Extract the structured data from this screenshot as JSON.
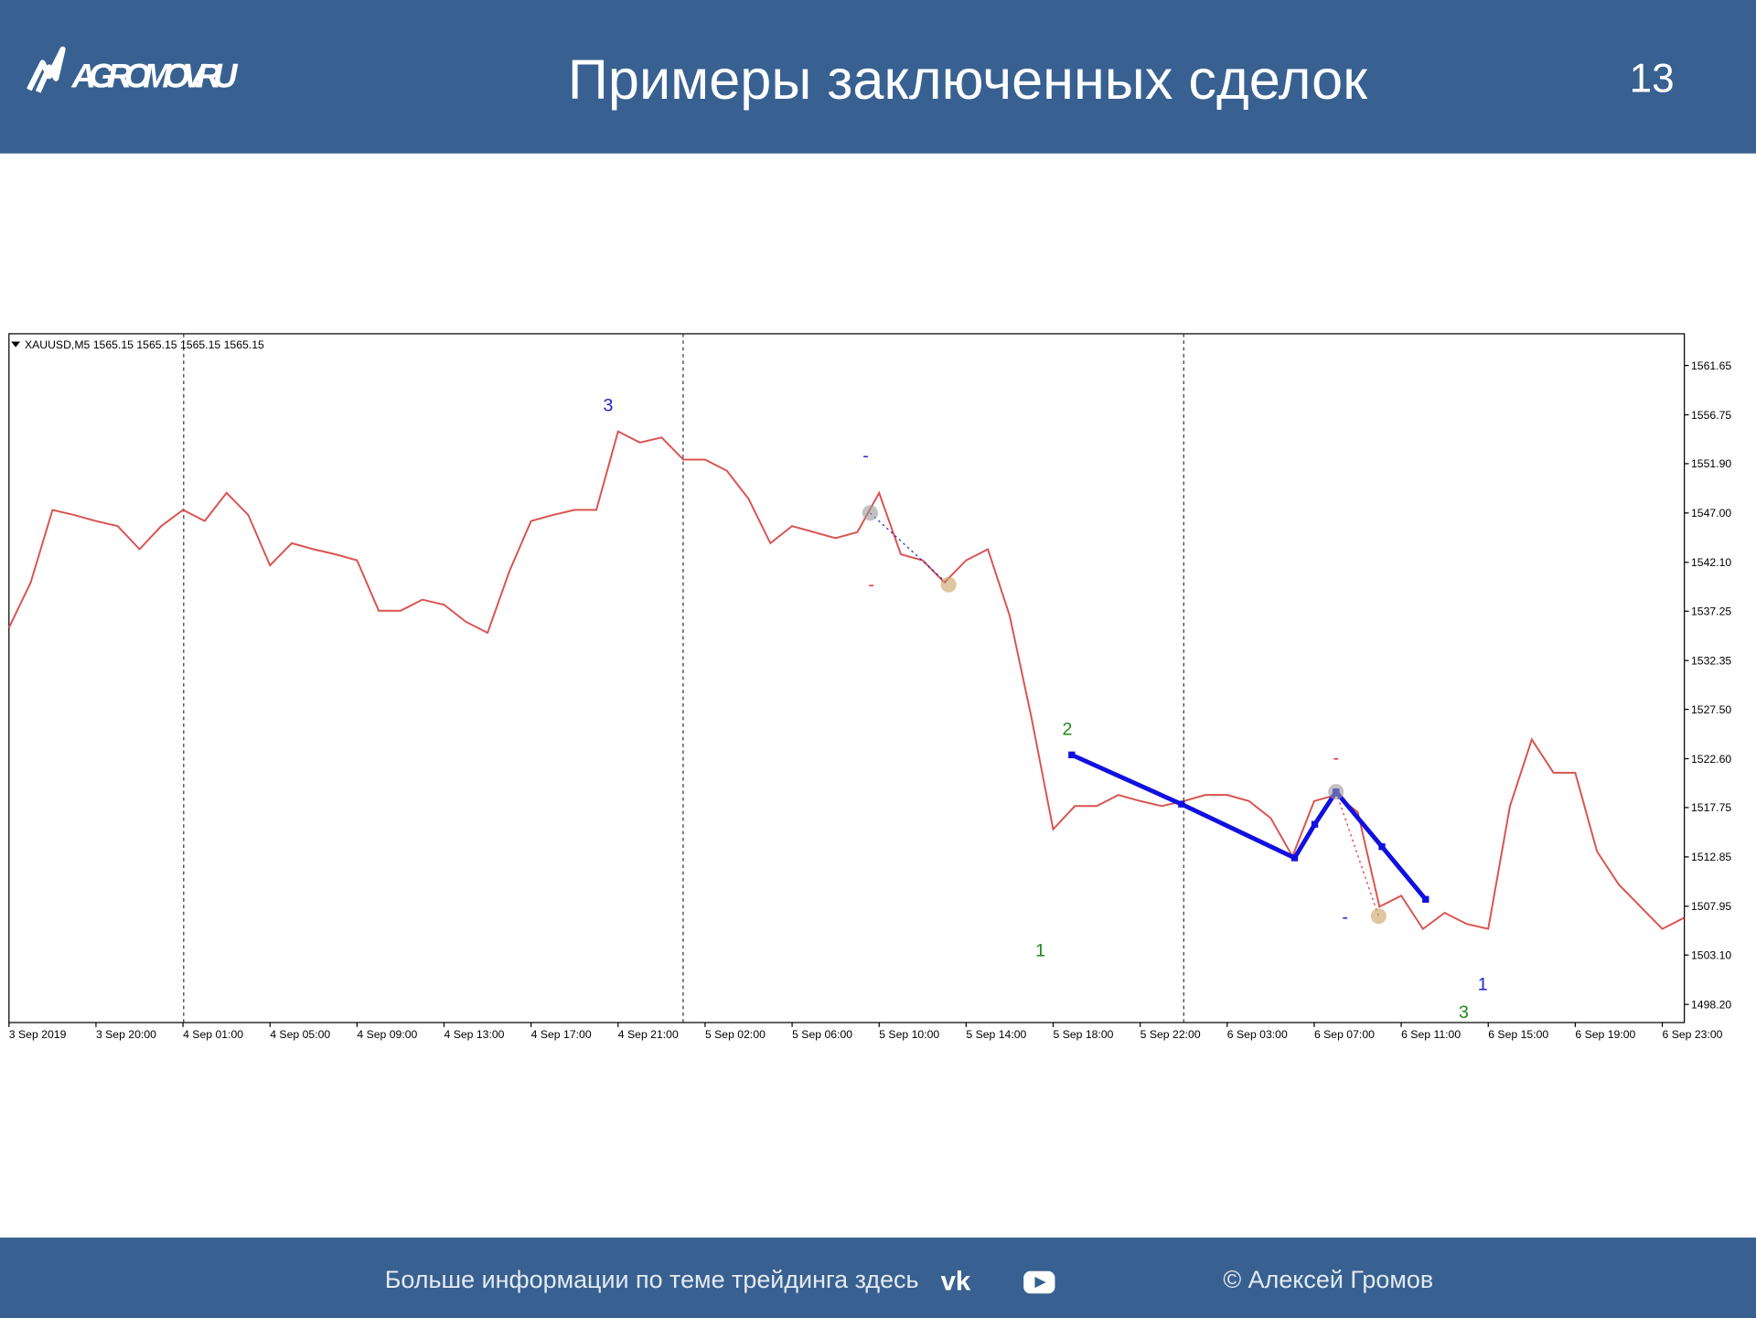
{
  "header": {
    "logo": "AGROMOV.RU",
    "title": "Примеры заключенных сделок",
    "page_number": 13
  },
  "chart_data": {
    "type": "line",
    "subtitle": "XAUUSD,M5  1565.15 1565.15 1565.15 1565.15",
    "color": "#d9534f",
    "categories": [
      "3 Sep 2019",
      null,
      null,
      null,
      "3 Sep 20:00",
      null,
      null,
      null,
      "4 Sep 01:00",
      null,
      null,
      null,
      "4 Sep 05:00",
      null,
      null,
      null,
      "4 Sep 09:00",
      null,
      null,
      null,
      "4 Sep 13:00",
      null,
      null,
      null,
      "4 Sep 17:00",
      null,
      null,
      null,
      "4 Sep 21:00",
      null,
      null,
      null,
      "5 Sep 02:00",
      null,
      null,
      null,
      "5 Sep 06:00",
      null,
      null,
      null,
      "5 Sep 10:00",
      null,
      null,
      null,
      "5 Sep 14:00",
      null,
      null,
      null,
      "5 Sep 18:00",
      null,
      null,
      null,
      "5 Sep 22:00",
      null,
      null,
      null,
      "6 Sep 03:00",
      null,
      null,
      null,
      "6 Sep 07:00",
      null,
      null,
      null,
      "6 Sep 11:00",
      null,
      null,
      null,
      "6 Sep 15:00",
      null,
      null,
      null,
      "6 Sep 19:00",
      null,
      null,
      null,
      "6 Sep 23:00",
      null
    ],
    "values": [
      1535.6,
      1540.1,
      1547.3,
      1546.8,
      1546.2,
      1545.7,
      1543.4,
      1545.7,
      1547.3,
      1546.2,
      1549.0,
      1546.8,
      1541.8,
      1544.0,
      1543.4,
      1542.9,
      1542.3,
      1537.3,
      1537.3,
      1538.4,
      1537.9,
      1536.2,
      1535.1,
      1541.2,
      1546.2,
      1546.8,
      1547.3,
      1547.3,
      1555.1,
      1554.0,
      1554.5,
      1552.3,
      1552.3,
      1551.2,
      1548.4,
      1544.0,
      1545.7,
      1545.1,
      1544.5,
      1545.1,
      1549.0,
      1542.9,
      1542.3,
      1540.1,
      1542.3,
      1543.4,
      1536.8,
      1526.7,
      1515.6,
      1517.9,
      1517.9,
      1519.0,
      1518.4,
      1517.9,
      1518.4,
      1519.0,
      1519.0,
      1518.4,
      1516.7,
      1512.9,
      1518.4,
      1519.0,
      1517.3,
      1507.9,
      1509.0,
      1505.7,
      1507.3,
      1506.2,
      1505.7,
      1517.9,
      1524.5,
      1521.2,
      1521.2,
      1513.4,
      1510.1,
      1507.9,
      1505.7,
      1506.8
    ],
    "ylim": [
      1496.4,
      1564.8
    ],
    "yticks": [
      1561.65,
      1556.75,
      {
        "value": 1551.9,
        "label": "1551.90"
      },
      {
        "value": 1547,
        "label": "1547.00"
      },
      {
        "value": 1542.1,
        "label": "1542.10"
      },
      1537.25,
      1532.35,
      {
        "value": 1527.5,
        "label": "1527.50"
      },
      {
        "value": 1522.6,
        "label": "1522.60"
      },
      1517.75,
      1512.85,
      1507.95,
      {
        "value": 1503.1,
        "label": "1503.10"
      },
      {
        "value": 1498.2,
        "label": "1498.20"
      }
    ],
    "grid": false,
    "annotations": [
      {
        "text": "3",
        "color": "#1f1fd6"
      },
      {
        "text": "2",
        "color": "#1a8a1a"
      },
      {
        "text": "1",
        "color": "#1a8a1a"
      },
      {
        "text": "1",
        "color": "#1f1fd6"
      },
      {
        "text": "3",
        "color": "#1a8a1a"
      },
      {
        "text": "-",
        "color": "#1f1fd6"
      },
      {
        "text": "-",
        "color": "#e03030"
      },
      {
        "text": "-",
        "color": "#e03030"
      },
      {
        "text": "-",
        "color": "#1f1fd6"
      }
    ]
  },
  "footer": {
    "text": "Больше информации по теме трейдинга здесь",
    "copyright": "© Алексей Громов"
  }
}
